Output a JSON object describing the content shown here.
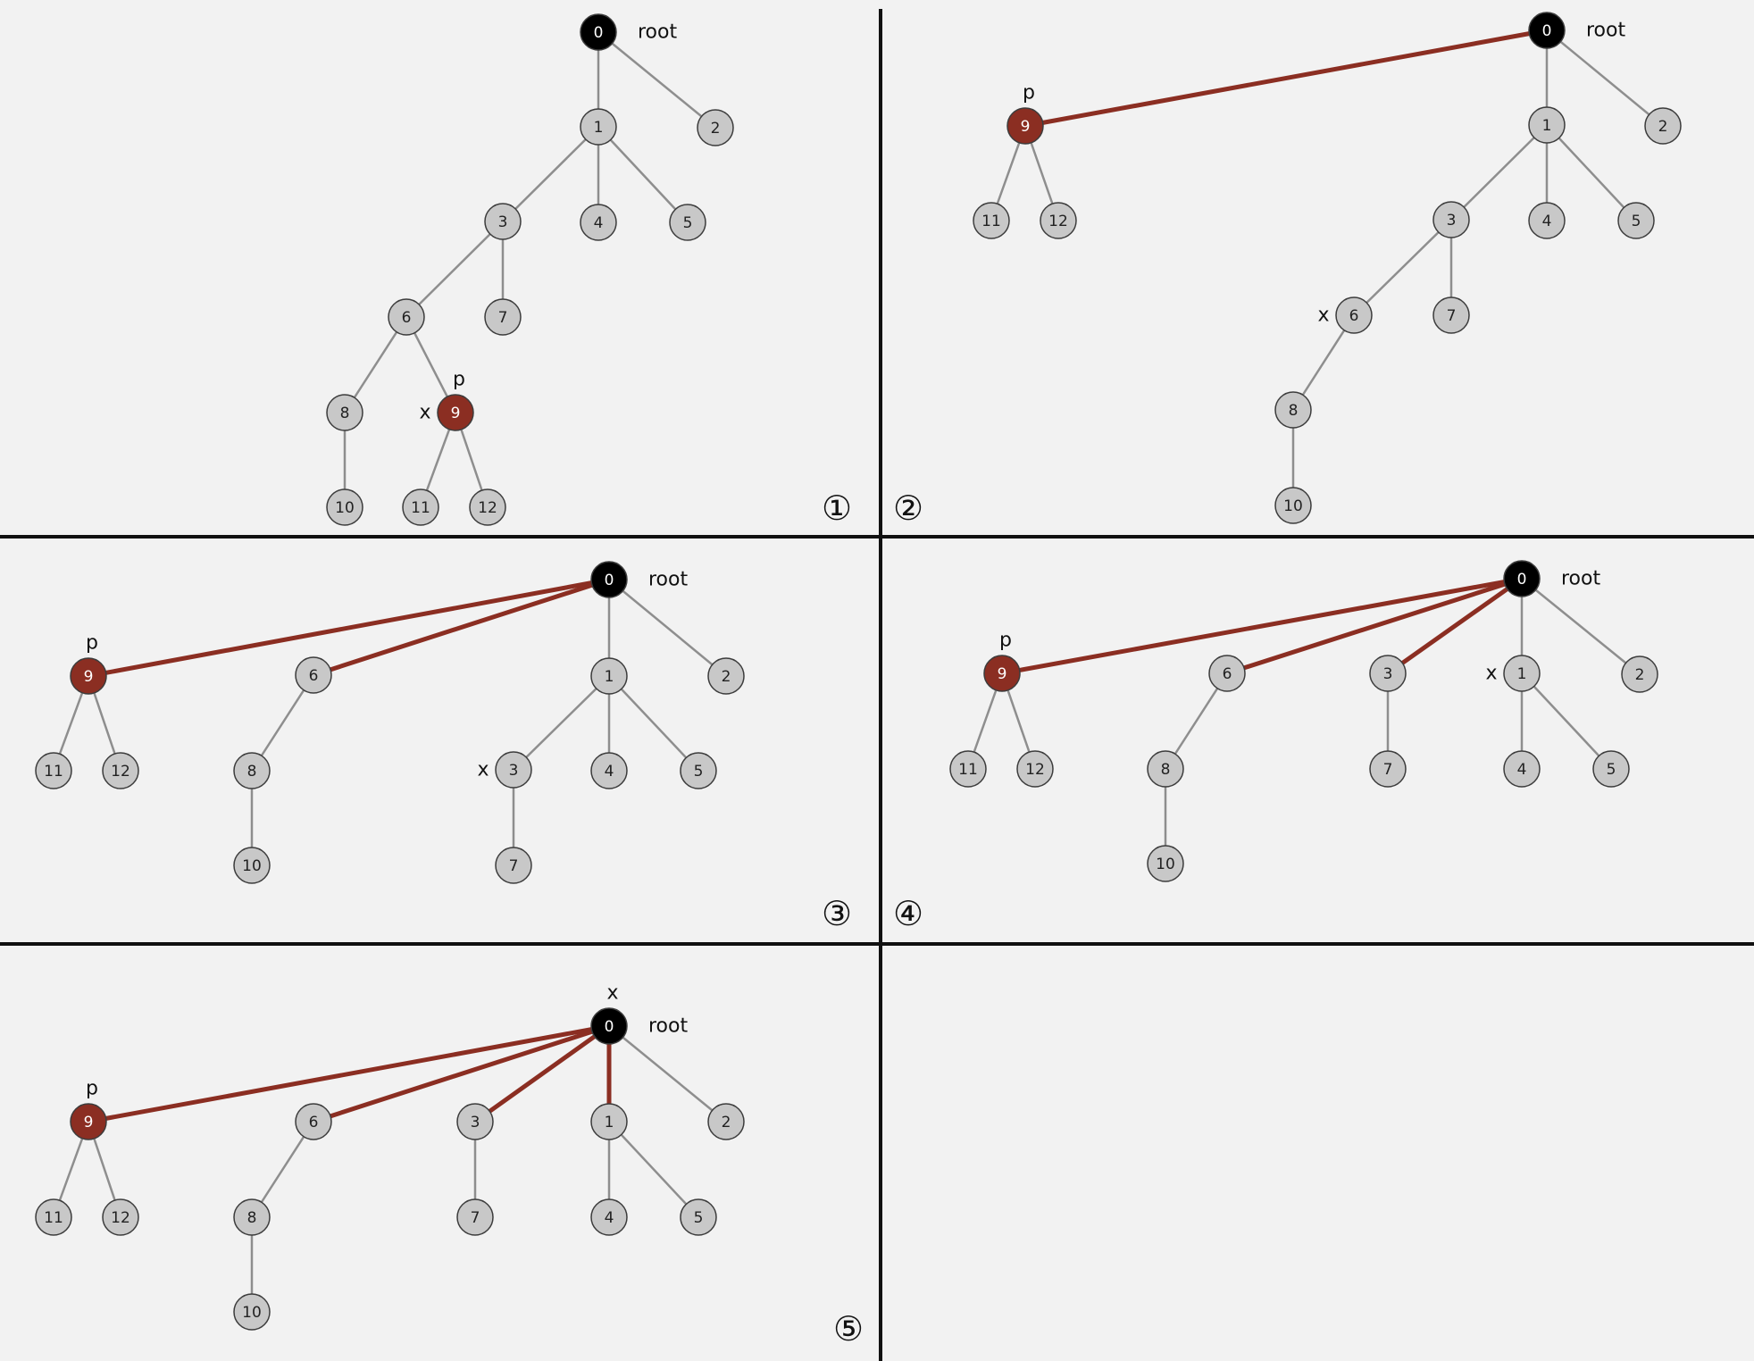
{
  "colors": {
    "background": "#f2f2f2",
    "node_gray": "#c8c8c8",
    "node_root": "#000000",
    "node_highlight": "#8b2e22",
    "edge_plain": "#8e8e8e",
    "edge_path": "#8b2e22"
  },
  "panels": [
    {
      "step": "①",
      "nodes": [
        {
          "id": "0",
          "kind": "root"
        },
        {
          "id": "1",
          "kind": "gray"
        },
        {
          "id": "2",
          "kind": "gray"
        },
        {
          "id": "3",
          "kind": "gray"
        },
        {
          "id": "4",
          "kind": "gray"
        },
        {
          "id": "5",
          "kind": "gray"
        },
        {
          "id": "6",
          "kind": "gray"
        },
        {
          "id": "7",
          "kind": "gray"
        },
        {
          "id": "8",
          "kind": "gray"
        },
        {
          "id": "9",
          "kind": "highlight"
        },
        {
          "id": "10",
          "kind": "gray"
        },
        {
          "id": "11",
          "kind": "gray"
        },
        {
          "id": "12",
          "kind": "gray"
        }
      ],
      "edges": [
        [
          "0",
          "1",
          "plain"
        ],
        [
          "0",
          "2",
          "plain"
        ],
        [
          "1",
          "3",
          "plain"
        ],
        [
          "1",
          "4",
          "plain"
        ],
        [
          "1",
          "5",
          "plain"
        ],
        [
          "3",
          "6",
          "plain"
        ],
        [
          "3",
          "7",
          "plain"
        ],
        [
          "6",
          "8",
          "plain"
        ],
        [
          "6",
          "9",
          "plain"
        ],
        [
          "8",
          "10",
          "plain"
        ],
        [
          "9",
          "11",
          "plain"
        ],
        [
          "9",
          "12",
          "plain"
        ]
      ],
      "labels": [
        {
          "text": "root",
          "node": "0",
          "side": "right"
        },
        {
          "text": "p",
          "node": "9",
          "side": "above"
        },
        {
          "text": "x",
          "node": "9",
          "side": "left"
        }
      ]
    },
    {
      "step": "②",
      "nodes": [
        {
          "id": "0",
          "kind": "root"
        },
        {
          "id": "9",
          "kind": "highlight"
        },
        {
          "id": "11",
          "kind": "gray"
        },
        {
          "id": "12",
          "kind": "gray"
        },
        {
          "id": "1",
          "kind": "gray"
        },
        {
          "id": "2",
          "kind": "gray"
        },
        {
          "id": "3",
          "kind": "gray"
        },
        {
          "id": "4",
          "kind": "gray"
        },
        {
          "id": "5",
          "kind": "gray"
        },
        {
          "id": "6",
          "kind": "gray"
        },
        {
          "id": "7",
          "kind": "gray"
        },
        {
          "id": "8",
          "kind": "gray"
        },
        {
          "id": "10",
          "kind": "gray"
        }
      ],
      "edges": [
        [
          "0",
          "9",
          "path"
        ],
        [
          "9",
          "11",
          "plain"
        ],
        [
          "9",
          "12",
          "plain"
        ],
        [
          "0",
          "1",
          "plain"
        ],
        [
          "0",
          "2",
          "plain"
        ],
        [
          "1",
          "3",
          "plain"
        ],
        [
          "1",
          "4",
          "plain"
        ],
        [
          "1",
          "5",
          "plain"
        ],
        [
          "3",
          "6",
          "plain"
        ],
        [
          "3",
          "7",
          "plain"
        ],
        [
          "6",
          "8",
          "plain"
        ],
        [
          "8",
          "10",
          "plain"
        ]
      ],
      "labels": [
        {
          "text": "root",
          "node": "0",
          "side": "right"
        },
        {
          "text": "p",
          "node": "9",
          "side": "above"
        },
        {
          "text": "x",
          "node": "6",
          "side": "left"
        }
      ]
    },
    {
      "step": "③",
      "nodes": [
        {
          "id": "0",
          "kind": "root"
        },
        {
          "id": "9",
          "kind": "highlight"
        },
        {
          "id": "11",
          "kind": "gray"
        },
        {
          "id": "12",
          "kind": "gray"
        },
        {
          "id": "6",
          "kind": "gray"
        },
        {
          "id": "8",
          "kind": "gray"
        },
        {
          "id": "10",
          "kind": "gray"
        },
        {
          "id": "1",
          "kind": "gray"
        },
        {
          "id": "2",
          "kind": "gray"
        },
        {
          "id": "3",
          "kind": "gray"
        },
        {
          "id": "4",
          "kind": "gray"
        },
        {
          "id": "5",
          "kind": "gray"
        },
        {
          "id": "7",
          "kind": "gray"
        }
      ],
      "edges": [
        [
          "0",
          "9",
          "path"
        ],
        [
          "0",
          "6",
          "path"
        ],
        [
          "9",
          "11",
          "plain"
        ],
        [
          "9",
          "12",
          "plain"
        ],
        [
          "6",
          "8",
          "plain"
        ],
        [
          "8",
          "10",
          "plain"
        ],
        [
          "0",
          "1",
          "plain"
        ],
        [
          "0",
          "2",
          "plain"
        ],
        [
          "1",
          "3",
          "plain"
        ],
        [
          "1",
          "4",
          "plain"
        ],
        [
          "1",
          "5",
          "plain"
        ],
        [
          "3",
          "7",
          "plain"
        ]
      ],
      "labels": [
        {
          "text": "root",
          "node": "0",
          "side": "right"
        },
        {
          "text": "p",
          "node": "9",
          "side": "above"
        },
        {
          "text": "x",
          "node": "3",
          "side": "left"
        }
      ]
    },
    {
      "step": "④",
      "nodes": [
        {
          "id": "0",
          "kind": "root"
        },
        {
          "id": "9",
          "kind": "highlight"
        },
        {
          "id": "11",
          "kind": "gray"
        },
        {
          "id": "12",
          "kind": "gray"
        },
        {
          "id": "6",
          "kind": "gray"
        },
        {
          "id": "8",
          "kind": "gray"
        },
        {
          "id": "10",
          "kind": "gray"
        },
        {
          "id": "3",
          "kind": "gray"
        },
        {
          "id": "7",
          "kind": "gray"
        },
        {
          "id": "1",
          "kind": "gray"
        },
        {
          "id": "4",
          "kind": "gray"
        },
        {
          "id": "5",
          "kind": "gray"
        },
        {
          "id": "2",
          "kind": "gray"
        }
      ],
      "edges": [
        [
          "0",
          "9",
          "path"
        ],
        [
          "0",
          "6",
          "path"
        ],
        [
          "0",
          "3",
          "path"
        ],
        [
          "9",
          "11",
          "plain"
        ],
        [
          "9",
          "12",
          "plain"
        ],
        [
          "6",
          "8",
          "plain"
        ],
        [
          "8",
          "10",
          "plain"
        ],
        [
          "3",
          "7",
          "plain"
        ],
        [
          "0",
          "1",
          "plain"
        ],
        [
          "0",
          "2",
          "plain"
        ],
        [
          "1",
          "4",
          "plain"
        ],
        [
          "1",
          "5",
          "plain"
        ]
      ],
      "labels": [
        {
          "text": "root",
          "node": "0",
          "side": "right"
        },
        {
          "text": "p",
          "node": "9",
          "side": "above"
        },
        {
          "text": "x",
          "node": "1",
          "side": "left"
        }
      ]
    },
    {
      "step": "⑤",
      "nodes": [
        {
          "id": "0",
          "kind": "root"
        },
        {
          "id": "9",
          "kind": "highlight"
        },
        {
          "id": "11",
          "kind": "gray"
        },
        {
          "id": "12",
          "kind": "gray"
        },
        {
          "id": "6",
          "kind": "gray"
        },
        {
          "id": "8",
          "kind": "gray"
        },
        {
          "id": "10",
          "kind": "gray"
        },
        {
          "id": "3",
          "kind": "gray"
        },
        {
          "id": "7",
          "kind": "gray"
        },
        {
          "id": "1",
          "kind": "gray"
        },
        {
          "id": "4",
          "kind": "gray"
        },
        {
          "id": "5",
          "kind": "gray"
        },
        {
          "id": "2",
          "kind": "gray"
        }
      ],
      "edges": [
        [
          "0",
          "9",
          "path"
        ],
        [
          "0",
          "6",
          "path"
        ],
        [
          "0",
          "3",
          "path"
        ],
        [
          "0",
          "1",
          "path"
        ],
        [
          "9",
          "11",
          "plain"
        ],
        [
          "9",
          "12",
          "plain"
        ],
        [
          "6",
          "8",
          "plain"
        ],
        [
          "8",
          "10",
          "plain"
        ],
        [
          "3",
          "7",
          "plain"
        ],
        [
          "0",
          "2",
          "plain"
        ],
        [
          "1",
          "4",
          "plain"
        ],
        [
          "1",
          "5",
          "plain"
        ]
      ],
      "labels": [
        {
          "text": "root",
          "node": "0",
          "side": "right"
        },
        {
          "text": "p",
          "node": "9",
          "side": "above"
        },
        {
          "text": "x",
          "node": "0",
          "side": "above"
        }
      ]
    }
  ]
}
